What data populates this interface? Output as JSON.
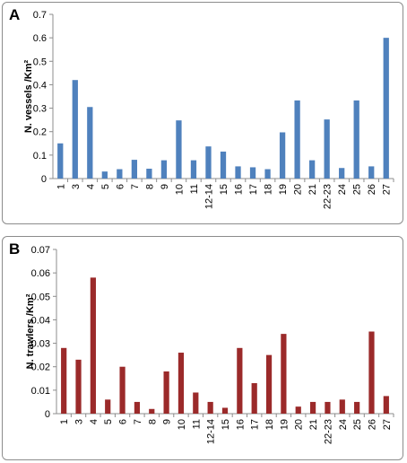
{
  "chart_data": [
    {
      "panel_letter": "A",
      "type": "bar",
      "categories": [
        "1",
        "3",
        "4",
        "5",
        "6",
        "7",
        "8",
        "9",
        "10",
        "11",
        "12-14",
        "15",
        "16",
        "17",
        "18",
        "19",
        "20",
        "21",
        "22-23",
        "24",
        "25",
        "26",
        "27"
      ],
      "values": [
        0.15,
        0.42,
        0.305,
        0.03,
        0.04,
        0.08,
        0.042,
        0.078,
        0.248,
        0.078,
        0.137,
        0.115,
        0.052,
        0.048,
        0.04,
        0.197,
        0.333,
        0.078,
        0.252,
        0.045,
        0.333,
        0.052,
        0.6
      ],
      "ylabel": "N. vessels /Km²",
      "yticks": [
        "0",
        "0.1",
        "0.2",
        "0.3",
        "0.4",
        "0.5",
        "0.6",
        "0.7"
      ],
      "ylim": [
        0,
        0.7
      ],
      "color": "#4f81bd",
      "grid": false
    },
    {
      "panel_letter": "B",
      "type": "bar",
      "categories": [
        "1",
        "3",
        "4",
        "5",
        "6",
        "7",
        "8",
        "9",
        "10",
        "11",
        "12-14",
        "15",
        "16",
        "17",
        "18",
        "19",
        "20",
        "21",
        "22-23",
        "24",
        "25",
        "26",
        "27"
      ],
      "values": [
        0.028,
        0.023,
        0.058,
        0.006,
        0.02,
        0.005,
        0.002,
        0.018,
        0.026,
        0.009,
        0.005,
        0.0025,
        0.028,
        0.013,
        0.025,
        0.034,
        0.003,
        0.005,
        0.005,
        0.006,
        0.005,
        0.035,
        0.0075
      ],
      "ylabel": "N. trawlers /Km²",
      "yticks": [
        "0",
        "0.01",
        "0.02",
        "0.03",
        "0.04",
        "0.05",
        "0.06",
        "0.07"
      ],
      "ylim": [
        0,
        0.07
      ],
      "color": "#9b2a2a",
      "grid": false
    }
  ]
}
